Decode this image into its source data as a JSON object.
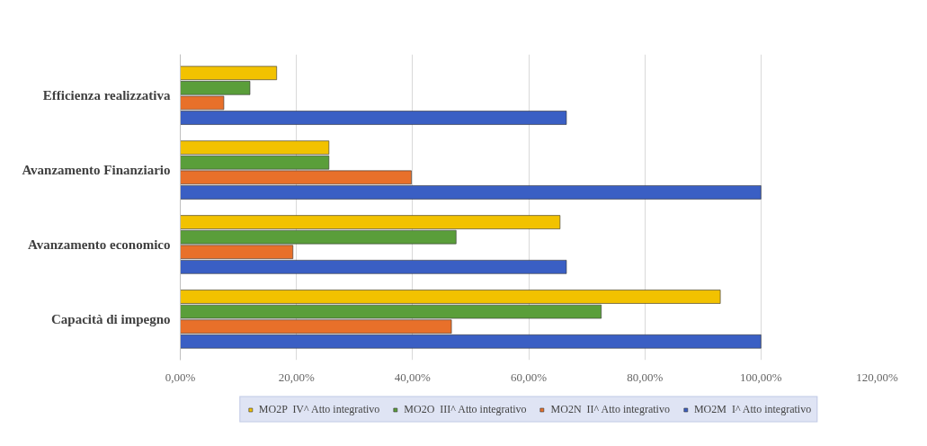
{
  "chart_data": {
    "type": "bar",
    "orientation": "horizontal",
    "categories": [
      "Efficienza realizzativa",
      "Avanzamento Finanziario",
      "Avanzamento economico",
      "Capacità di impegno"
    ],
    "series": [
      {
        "name": "MO2P  IV^ Atto integrativo",
        "color": "#f2c200",
        "values": [
          16.6,
          25.6,
          65.4,
          93
        ]
      },
      {
        "name": "MO2O  III^ Atto integrativo",
        "color": "#5a9e3a",
        "values": [
          12,
          25.6,
          47.5,
          72.5
        ]
      },
      {
        "name": "MO2N  II^ Atto integrativo",
        "color": "#e8702a",
        "values": [
          7.5,
          39.8,
          19.4,
          46.7
        ]
      },
      {
        "name": "MO2M  I^ Atto integrativo",
        "color": "#3a5fc4",
        "values": [
          66.5,
          100,
          66.5,
          100
        ]
      }
    ],
    "xlim": [
      0,
      120
    ],
    "xticks": [
      {
        "value": 0,
        "label": "0,00%"
      },
      {
        "value": 20,
        "label": "20,00%"
      },
      {
        "value": 40,
        "label": "40,00%"
      },
      {
        "value": 60,
        "label": "60,00%"
      },
      {
        "value": 80,
        "label": "80,00%"
      },
      {
        "value": 100,
        "label": "100,00%"
      },
      {
        "value": 120,
        "label": "120,00%"
      }
    ],
    "grid": "x",
    "legend": "bottom"
  }
}
